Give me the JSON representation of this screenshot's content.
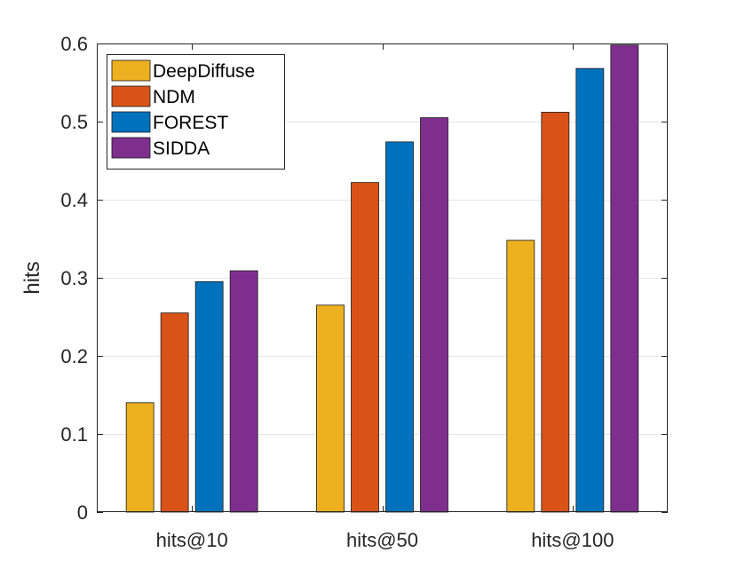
{
  "chart_data": {
    "type": "bar",
    "title": "",
    "xlabel": "",
    "ylabel": "hits",
    "ylim": [
      0,
      0.6
    ],
    "yticks": [
      0,
      0.1,
      0.2,
      0.3,
      0.4,
      0.5,
      0.6
    ],
    "ytick_labels": [
      "0",
      "0.1",
      "0.2",
      "0.3",
      "0.4",
      "0.5",
      "0.6"
    ],
    "grid": true,
    "legend_position": "top-left",
    "categories": [
      "hits@10",
      "hits@50",
      "hits@100"
    ],
    "series": [
      {
        "name": "DeepDiffuse",
        "color": "#EDB120",
        "values": [
          0.14,
          0.265,
          0.348
        ]
      },
      {
        "name": "NDM",
        "color": "#D95319",
        "values": [
          0.255,
          0.422,
          0.512
        ]
      },
      {
        "name": "FOREST",
        "color": "#0072BD",
        "values": [
          0.295,
          0.474,
          0.568
        ]
      },
      {
        "name": "SIDDA",
        "color": "#7E2F8E",
        "values": [
          0.309,
          0.505,
          0.598
        ]
      }
    ]
  }
}
